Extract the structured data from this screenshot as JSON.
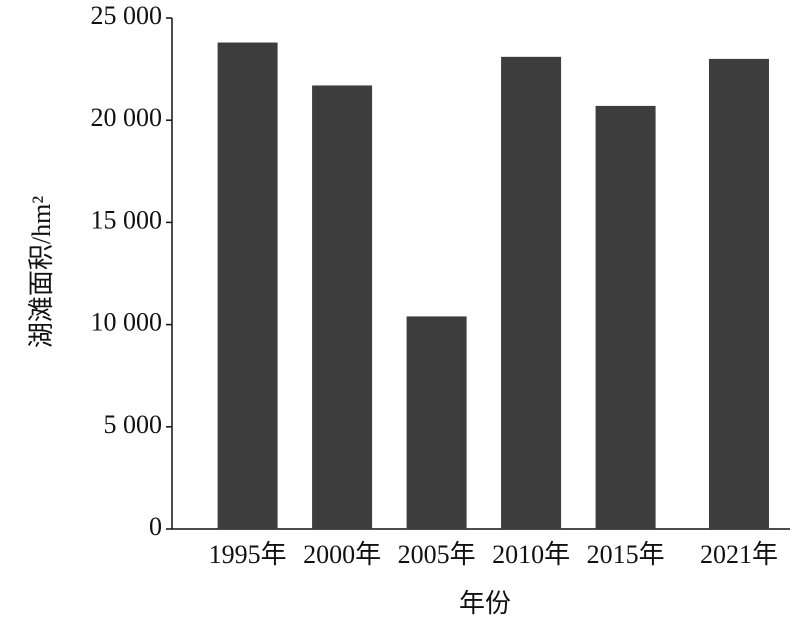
{
  "chart_data": {
    "type": "bar",
    "x": [
      1995,
      2000,
      2005,
      2010,
      2015,
      2021
    ],
    "values": [
      23800,
      21700,
      10400,
      23100,
      20700,
      23000
    ],
    "color": "#3d3d3d",
    "xlim": [
      1991,
      2023.7
    ],
    "xticks": [
      {
        "value": 1995,
        "label": "1995年"
      },
      {
        "value": 2000,
        "label": "2000年"
      },
      {
        "value": 2005,
        "label": "2005年"
      },
      {
        "value": 2010,
        "label": "2010年"
      },
      {
        "value": 2015,
        "label": "2015年"
      },
      {
        "value": 2021,
        "label": "2021年"
      }
    ],
    "ylim": [
      0,
      25000
    ],
    "yticks": [
      0,
      {
        "value": 5000,
        "label": "5 000"
      },
      {
        "value": 10000,
        "label": "10 000"
      },
      {
        "value": 15000,
        "label": "15 000"
      },
      {
        "value": 20000,
        "label": "20 000"
      },
      {
        "value": 25000,
        "label": "25 000"
      }
    ],
    "xlabel": "年份",
    "ylabel": "湖滩面积/hm²"
  }
}
